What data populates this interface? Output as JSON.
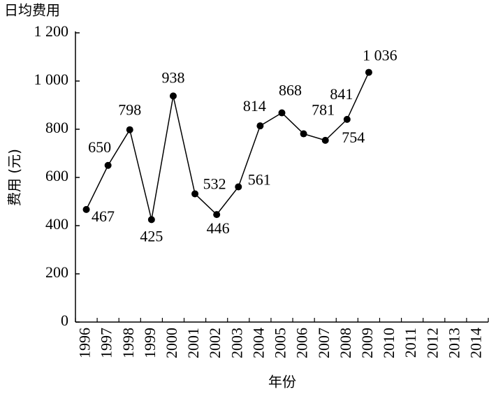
{
  "chart_data": {
    "type": "line",
    "title": "日均费用",
    "y_label": "费用 (元)",
    "x_label": "年份",
    "categories": [
      "1996",
      "1997",
      "1998",
      "1999",
      "2000",
      "2001",
      "2002",
      "2003",
      "2004",
      "2005",
      "2006",
      "2007",
      "2008",
      "2009",
      "2010",
      "2011",
      "2012",
      "2013",
      "2014"
    ],
    "series": [
      {
        "color": "#000000",
        "values": [
          467,
          650,
          798,
          425,
          938,
          532,
          446,
          561,
          814,
          868,
          781,
          754,
          841,
          1036,
          null,
          null,
          null,
          null,
          null
        ],
        "value_labels": [
          "467",
          "650",
          "798",
          "425",
          "938",
          "532",
          "446",
          "561",
          "814",
          "868",
          "781",
          "754",
          "841",
          "1 036",
          null,
          null,
          null,
          null,
          null
        ]
      }
    ],
    "ylim": [
      0,
      1200
    ],
    "yticks": [
      0,
      200,
      400,
      600,
      800,
      {
        "value": 1000,
        "label": "1 000"
      },
      {
        "value": 1200,
        "label": "1 200"
      }
    ],
    "grid": false
  }
}
